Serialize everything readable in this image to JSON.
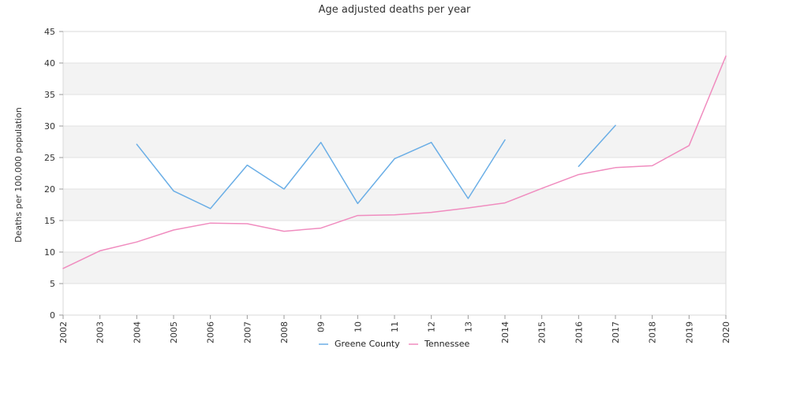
{
  "chart_data": {
    "type": "line",
    "title": "Age adjusted deaths per year",
    "xlabel": "",
    "ylabel": "Deaths per 100,000 population",
    "categories": [
      "2002",
      "2003",
      "2004",
      "2005",
      "2006",
      "2007",
      "2008",
      "09",
      "10",
      "11",
      "12",
      "13",
      "2014",
      "2015",
      "2016",
      "2017",
      "2018",
      "2019",
      "2020"
    ],
    "ylim": [
      0,
      45
    ],
    "yticks": [
      0,
      5,
      10,
      15,
      20,
      25,
      30,
      35,
      40,
      45
    ],
    "grid": "alternating horizontal bands",
    "legend": "bottom-center",
    "series": [
      {
        "name": "Greene County",
        "color": "#6aaee6",
        "values": [
          null,
          null,
          27.1,
          19.7,
          16.9,
          23.8,
          20.0,
          27.4,
          17.7,
          24.8,
          27.4,
          18.5,
          27.8,
          null,
          23.6,
          30.1,
          null,
          null,
          null
        ]
      },
      {
        "name": "Tennessee",
        "color": "#f08cbf",
        "values": [
          7.4,
          10.2,
          11.6,
          13.5,
          14.6,
          14.5,
          13.3,
          13.8,
          15.8,
          15.9,
          16.3,
          17.0,
          17.8,
          20.1,
          22.3,
          23.4,
          23.7,
          26.9,
          41.1
        ]
      }
    ]
  }
}
